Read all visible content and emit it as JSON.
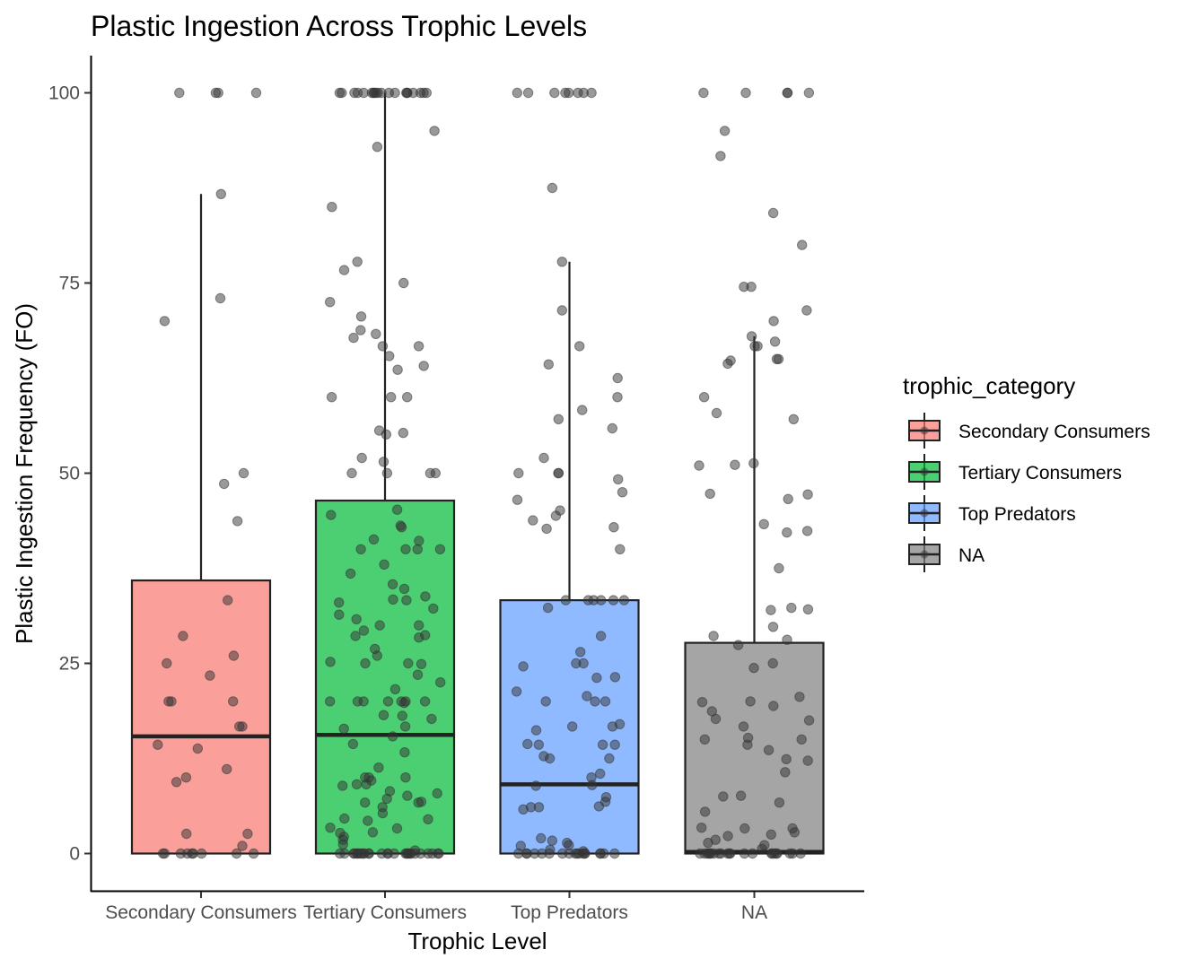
{
  "chart_data": {
    "type": "boxplot",
    "title": "Plastic Ingestion Across Trophic Levels",
    "xlabel": "Trophic Level",
    "ylabel": "Plastic Ingestion Frequency (FO)",
    "categories": [
      "Secondary Consumers",
      "Tertiary Consumers",
      "Top Predators",
      "NA"
    ],
    "ylim": [
      -5,
      105
    ],
    "yticks": [
      0,
      25,
      50,
      75,
      100
    ],
    "ytick_labels": [
      "0",
      "25",
      "50",
      "75",
      "100"
    ],
    "grid": false,
    "legend": {
      "title": "trophic_category",
      "position": "right",
      "entries": [
        "Secondary Consumers",
        "Tertiary Consumers",
        "Top Predators",
        "NA"
      ]
    },
    "colors": {
      "Secondary Consumers": "#F8766D",
      "Tertiary Consumers": "#00BA38",
      "Top Predators": "#619CFF",
      "NA": "#7F7F7F",
      "points": "#333333",
      "outline": "#222222"
    },
    "boxes": [
      {
        "category": "Secondary Consumers",
        "min": 0,
        "q1": 0,
        "median": 15.4,
        "q3": 35.9,
        "max": 86.7
      },
      {
        "category": "Tertiary Consumers",
        "min": 0,
        "q1": 0,
        "median": 15.6,
        "q3": 46.4,
        "max": 100
      },
      {
        "category": "Top Predators",
        "min": 0,
        "q1": 0,
        "median": 9.1,
        "q3": 33.3,
        "max": 77.8
      },
      {
        "category": "NA",
        "min": 0,
        "q1": 0,
        "median": 0.2,
        "q3": 27.7,
        "max": 68.0
      }
    ],
    "points": [
      {
        "category": "Secondary Consumers",
        "values": [
          100,
          100,
          100,
          100,
          86.7,
          73,
          70,
          50,
          48.6,
          43.7,
          33.3,
          28.6,
          26,
          25,
          23.4,
          20,
          20,
          20,
          16.7,
          16.7,
          14.3,
          13.8,
          11.1,
          10,
          9.4,
          2.6,
          2.6,
          1,
          0,
          0,
          0,
          0,
          0,
          0,
          0,
          0,
          0
        ]
      },
      {
        "category": "Tertiary Consumers",
        "values": [
          100,
          100,
          100,
          100,
          100,
          100,
          100,
          100,
          100,
          100,
          100,
          100,
          100,
          100,
          100,
          100,
          100,
          100,
          100,
          100,
          95,
          92.9,
          85,
          77.8,
          76.7,
          75,
          72.5,
          70.6,
          68.8,
          68.3,
          67.8,
          66.7,
          66.7,
          65.4,
          64.1,
          63.6,
          60,
          60,
          60,
          55.6,
          55.1,
          55.3,
          52,
          51.5,
          50,
          50,
          50,
          50,
          45.2,
          44.5,
          43.1,
          42.9,
          41.3,
          41.1,
          40,
          40,
          40,
          40,
          38,
          36.8,
          35.4,
          34.8,
          33.8,
          33.4,
          33.3,
          33,
          32.2,
          31.4,
          30.8,
          30,
          30,
          29.3,
          28.7,
          28.6,
          28.4,
          26.9,
          26,
          25.2,
          25,
          25,
          24.9,
          23.5,
          22.5,
          21.6,
          20,
          20,
          20,
          20,
          20,
          20,
          20,
          19.8,
          18.2,
          18.1,
          17.7,
          16.7,
          16.4,
          15.4,
          14.4,
          13.3,
          11.3,
          10,
          10,
          10,
          9.6,
          9.1,
          9.1,
          8.9,
          8.2,
          7.9,
          7.6,
          7.2,
          6.8,
          6.7,
          6.7,
          6.1,
          5.3,
          4.6,
          4.5,
          4.3,
          3.4,
          3.3,
          2.8,
          2.7,
          2.2,
          1.8,
          1.2,
          0.4,
          0,
          0,
          0,
          0,
          0,
          0,
          0,
          0,
          0,
          0,
          0,
          0,
          0,
          0,
          0,
          0,
          0,
          0,
          0,
          0,
          0,
          0,
          0,
          0,
          0,
          0,
          0,
          0
        ]
      },
      {
        "category": "Top Predators",
        "values": [
          100,
          100,
          100,
          100,
          100,
          100,
          100,
          100,
          87.5,
          77.8,
          71.4,
          66.7,
          64.3,
          62.5,
          60,
          58.3,
          57.1,
          55.9,
          52,
          50,
          50,
          50,
          49.2,
          47.5,
          46.5,
          45.1,
          44.4,
          43.8,
          42.9,
          42.7,
          40,
          33.3,
          33.3,
          33.3,
          33.3,
          33.3,
          33.3,
          32.3,
          28.6,
          26.5,
          25,
          25,
          24.6,
          23.2,
          23.1,
          21.3,
          20.7,
          20,
          20,
          20,
          17,
          16.7,
          16.7,
          16.2,
          14.4,
          14.3,
          14.3,
          14.3,
          12.8,
          12.5,
          12.5,
          10.5,
          10,
          9,
          8.9,
          7.4,
          6.8,
          6.2,
          6.1,
          6.1,
          5.8,
          2,
          1.7,
          1.4,
          1.1,
          1,
          0.5,
          0.3,
          0,
          0,
          0,
          0,
          0,
          0,
          0,
          0,
          0,
          0,
          0,
          0,
          0,
          0,
          0,
          0,
          0,
          0
        ]
      },
      {
        "category": "NA",
        "values": [
          100,
          100,
          100,
          100,
          100,
          95,
          91.7,
          84.2,
          80,
          74.5,
          74.5,
          71.4,
          70,
          68,
          67.3,
          66.7,
          66.7,
          65,
          65,
          64.8,
          64.4,
          60,
          57.9,
          57.1,
          51.3,
          51.1,
          51,
          47.3,
          47.2,
          46.6,
          43.3,
          42.4,
          42.2,
          37.5,
          32.3,
          32.1,
          32,
          29.8,
          28.6,
          28.1,
          27.4,
          25,
          24.4,
          20.6,
          20,
          19.9,
          19.4,
          18.7,
          17.7,
          17.5,
          16.7,
          15.2,
          15,
          15,
          14.3,
          13.6,
          12.2,
          12.4,
          10.7,
          7.6,
          7.5,
          6.7,
          5.5,
          3.4,
          3.3,
          3.3,
          2.8,
          2.5,
          2.3,
          1.8,
          1.4,
          1.1,
          0.6,
          0,
          0,
          0,
          0,
          0,
          0,
          0,
          0,
          0,
          0,
          0,
          0,
          0,
          0,
          0,
          0,
          0,
          0,
          0,
          0,
          0,
          0
        ]
      }
    ]
  }
}
